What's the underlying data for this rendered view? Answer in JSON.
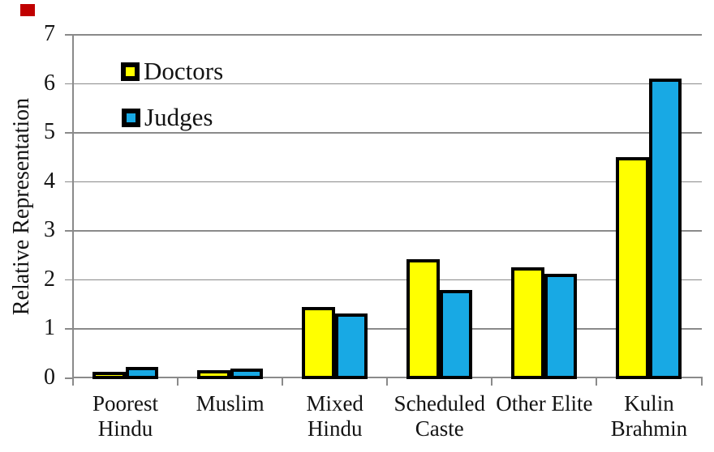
{
  "chart_data": {
    "type": "bar",
    "title": "",
    "ylabel": "Relative Representation",
    "xlabel": "",
    "ylim": [
      0,
      7
    ],
    "yticks": [
      0,
      1,
      2,
      3,
      4,
      5,
      6,
      7
    ],
    "grid": "horizontal-gridlines",
    "legend_position": "inside-top-left",
    "categories": [
      "Poorest Hindu",
      "Muslim",
      "Mixed Hindu",
      "Scheduled Caste",
      "Other Elite",
      "Kulin Brahmin"
    ],
    "category_label_lines": [
      [
        "Poorest",
        "Hindu"
      ],
      [
        "Muslim"
      ],
      [
        "Mixed",
        "Hindu"
      ],
      [
        "Scheduled",
        "Caste"
      ],
      [
        "Other Elite"
      ],
      [
        "Kulin",
        "Brahmin"
      ]
    ],
    "series": [
      {
        "name": "Doctors",
        "color": "#ffff00",
        "values": [
          0.07,
          0.1,
          1.39,
          2.37,
          2.2,
          4.45
        ]
      },
      {
        "name": "Judges",
        "color": "#18a9e4",
        "values": [
          0.18,
          0.14,
          1.26,
          1.75,
          2.07,
          6.06
        ]
      }
    ],
    "styles": {
      "bar_border_color": "#000000",
      "gridline_color": "#8a8a8a",
      "axis_color": "#8a8a8a",
      "text_color": "#131313",
      "background": "#ffffff"
    }
  },
  "corner_marker": {
    "color": "#c00000"
  }
}
